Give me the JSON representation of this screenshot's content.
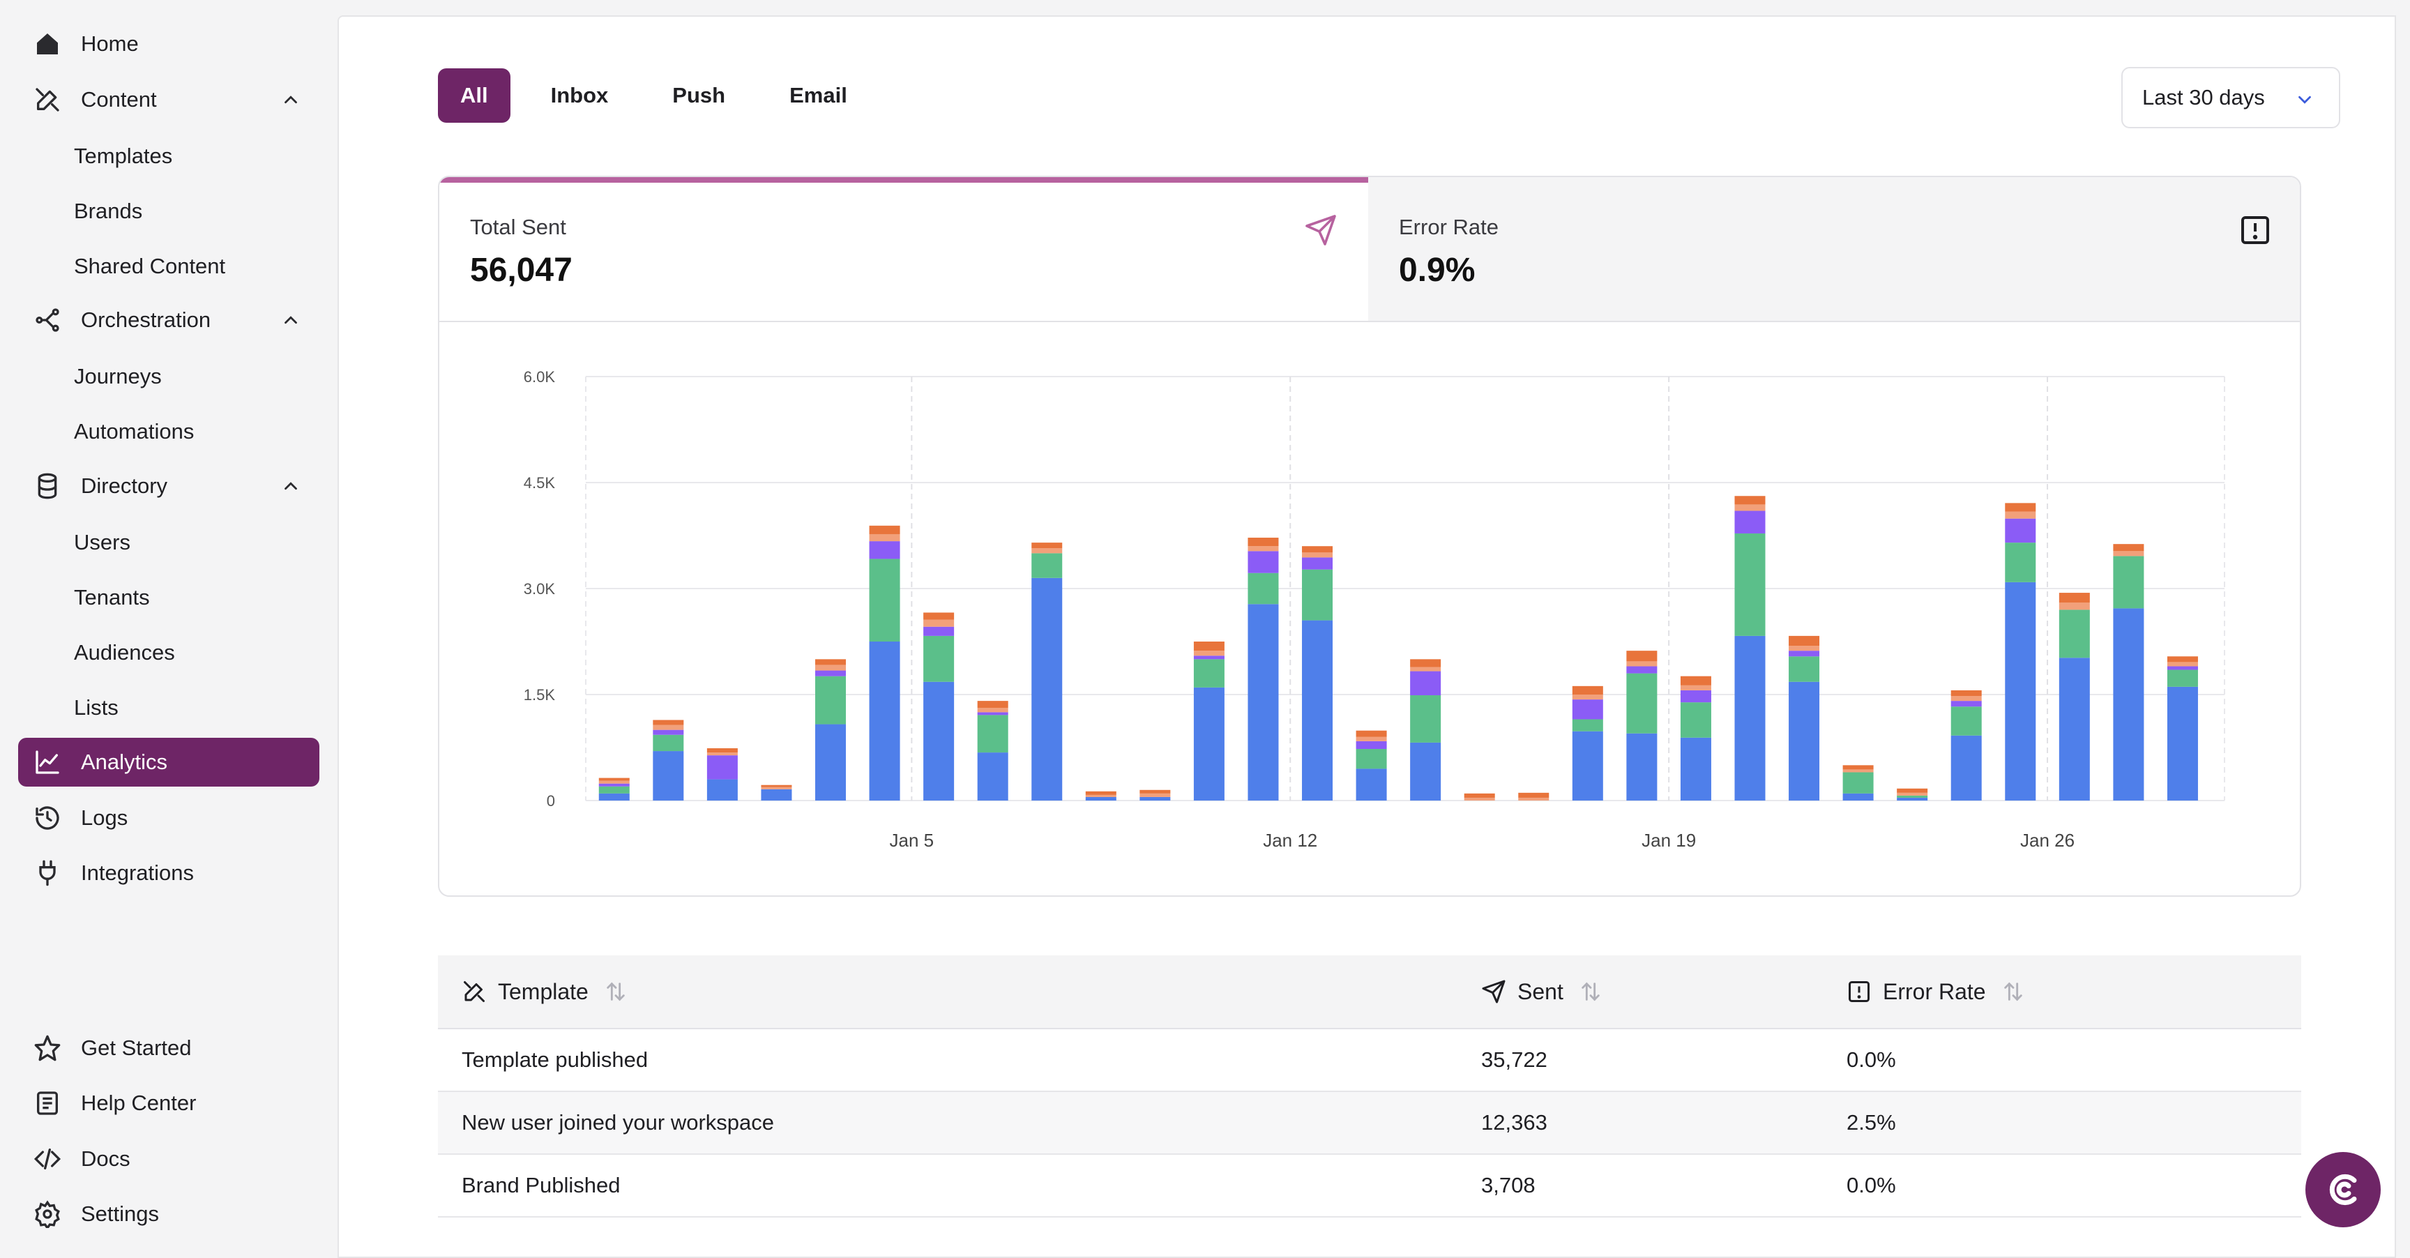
{
  "sidebar": {
    "home": "Home",
    "content": "Content",
    "content_items": [
      "Templates",
      "Brands",
      "Shared Content"
    ],
    "orchestration": "Orchestration",
    "orchestration_items": [
      "Journeys",
      "Automations"
    ],
    "directory": "Directory",
    "directory_items": [
      "Users",
      "Tenants",
      "Audiences",
      "Lists"
    ],
    "analytics": "Analytics",
    "logs": "Logs",
    "integrations": "Integrations",
    "get_started": "Get Started",
    "help_center": "Help Center",
    "docs": "Docs",
    "settings": "Settings"
  },
  "tabs": [
    "All",
    "Inbox",
    "Push",
    "Email"
  ],
  "date_range": "Last 30 days",
  "stats": {
    "total_sent_label": "Total Sent",
    "total_sent_value": "56,047",
    "error_rate_label": "Error Rate",
    "error_rate_value": "0.9%"
  },
  "colors": {
    "brand": "#6e2566",
    "accent": "#b7629f",
    "series_blue": "#4f7fea",
    "series_green": "#5bbf8a",
    "series_purple": "#8b5cf6",
    "series_pink": "#f2a07a",
    "series_orange": "#e8743b"
  },
  "chart_data": {
    "type": "bar",
    "stacked": true,
    "y_ticks": [
      "0",
      "1.5K",
      "3.0K",
      "4.5K",
      "6.0K"
    ],
    "ylim": [
      0,
      6000
    ],
    "x_labels": [
      {
        "label": "Jan 5",
        "index": 5
      },
      {
        "label": "Jan 12",
        "index": 12
      },
      {
        "label": "Jan 19",
        "index": 19
      },
      {
        "label": "Jan 26",
        "index": 26
      }
    ],
    "grid": true,
    "series": [
      {
        "values": [
          100,
          700,
          300,
          160,
          1080,
          2250,
          1680,
          680,
          3150,
          50,
          50,
          1600,
          2780,
          2550,
          450,
          820,
          0,
          0,
          980,
          950,
          890,
          2330,
          1680,
          100,
          40,
          920,
          3090,
          2020,
          2720,
          1610
        ]
      },
      {
        "values": [
          100,
          230,
          0,
          0,
          680,
          1170,
          650,
          530,
          350,
          0,
          0,
          400,
          440,
          720,
          280,
          670,
          0,
          0,
          170,
          850,
          500,
          1450,
          360,
          300,
          30,
          410,
          560,
          680,
          740,
          240
        ]
      },
      {
        "values": [
          40,
          70,
          340,
          0,
          80,
          250,
          130,
          40,
          0,
          0,
          0,
          50,
          310,
          170,
          110,
          340,
          0,
          0,
          280,
          100,
          170,
          320,
          80,
          0,
          0,
          80,
          340,
          0,
          0,
          50
        ]
      },
      {
        "values": [
          40,
          70,
          40,
          30,
          80,
          100,
          100,
          60,
          70,
          30,
          50,
          70,
          70,
          70,
          60,
          60,
          40,
          40,
          70,
          70,
          70,
          90,
          70,
          40,
          40,
          70,
          100,
          100,
          70,
          60
        ]
      },
      {
        "values": [
          40,
          70,
          60,
          30,
          80,
          120,
          100,
          100,
          80,
          50,
          50,
          130,
          120,
          90,
          90,
          110,
          60,
          70,
          120,
          150,
          130,
          120,
          140,
          60,
          60,
          80,
          120,
          140,
          100,
          80
        ]
      }
    ]
  },
  "table": {
    "headers": [
      "Template",
      "Sent",
      "Error Rate"
    ],
    "rows": [
      {
        "template": "Template published",
        "sent": "35,722",
        "error_rate": "0.0%"
      },
      {
        "template": "New user joined your workspace",
        "sent": "12,363",
        "error_rate": "2.5%"
      },
      {
        "template": "Brand Published",
        "sent": "3,708",
        "error_rate": "0.0%"
      }
    ]
  }
}
